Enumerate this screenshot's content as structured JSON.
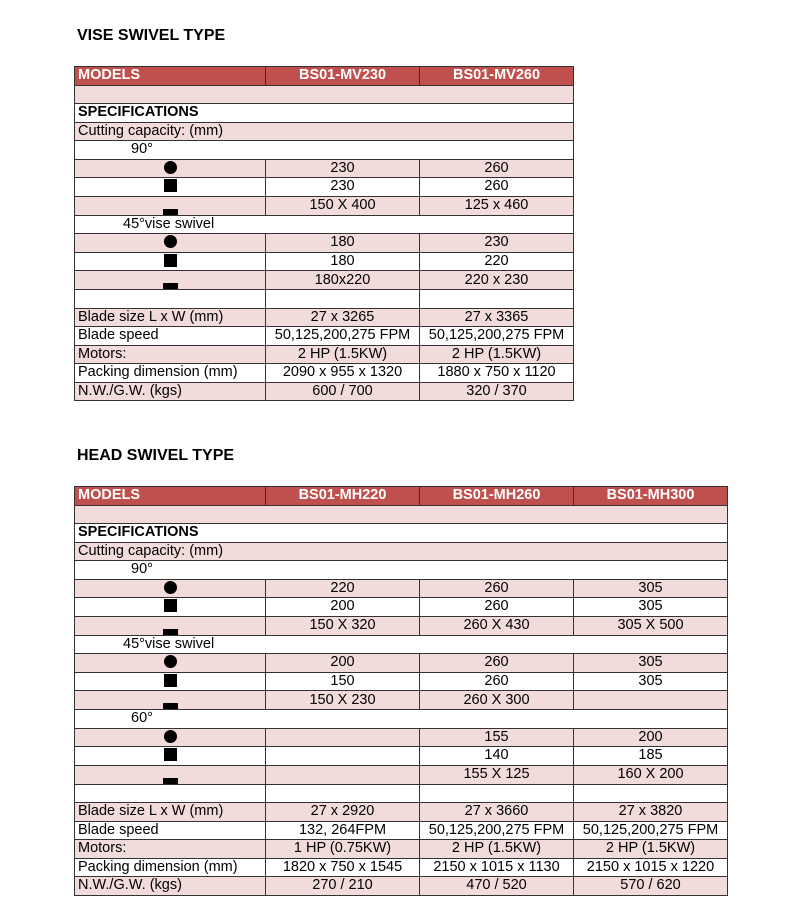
{
  "colors": {
    "header": "#c0504d",
    "shade": "#f2dcdb"
  },
  "tables": [
    {
      "title": "VISE SWIVEL TYPE",
      "models_label": "MODELS",
      "models": [
        "BS01-MV230",
        "BS01-MV260"
      ],
      "rows": [
        {
          "kind": "span",
          "label": "",
          "shade": true
        },
        {
          "kind": "span",
          "label": "SPECIFICATIONS",
          "bold": true,
          "shade": false
        },
        {
          "kind": "span",
          "label": "Cutting capacity: (mm)",
          "shade": true
        },
        {
          "kind": "span",
          "label": "90°",
          "indent": true,
          "shade": false
        },
        {
          "kind": "shape",
          "shape": "circle",
          "values": [
            "230",
            "260"
          ],
          "shade": true
        },
        {
          "kind": "shape",
          "shape": "square",
          "values": [
            "230",
            "260"
          ],
          "shade": false
        },
        {
          "kind": "shape",
          "shape": "rect",
          "values": [
            "150 X 400",
            "125 x 460"
          ],
          "shade": true
        },
        {
          "kind": "span",
          "label": "45°vise swivel",
          "indent2": true,
          "shade": false
        },
        {
          "kind": "shape",
          "shape": "circle",
          "values": [
            "180",
            "230"
          ],
          "shade": true
        },
        {
          "kind": "shape",
          "shape": "square",
          "values": [
            "180",
            "220"
          ],
          "shade": false
        },
        {
          "kind": "shape",
          "shape": "rect",
          "values": [
            "180x220",
            "220 x 230"
          ],
          "shade": true
        },
        {
          "kind": "row",
          "label": "",
          "values": [
            "",
            ""
          ],
          "shade": false
        },
        {
          "kind": "row",
          "label": "Blade size L x W (mm)",
          "values": [
            "27 x 3265",
            "27 x 3365"
          ],
          "shade": true
        },
        {
          "kind": "row",
          "label": "Blade speed",
          "values": [
            "50,125,200,275 FPM",
            "50,125,200,275 FPM"
          ],
          "shade": false
        },
        {
          "kind": "row",
          "label": "Motors:",
          "values": [
            "2 HP (1.5KW)",
            "2 HP (1.5KW)"
          ],
          "shade": true
        },
        {
          "kind": "row",
          "label": "Packing dimension (mm)",
          "values": [
            "2090 x 955 x 1320",
            "1880 x 750 x 1120"
          ],
          "shade": false
        },
        {
          "kind": "row",
          "label": "N.W./G.W. (kgs)",
          "values": [
            "600 / 700",
            "320 / 370"
          ],
          "shade": true
        }
      ]
    },
    {
      "title": "HEAD SWIVEL TYPE",
      "models_label": "MODELS",
      "models": [
        "BS01-MH220",
        "BS01-MH260",
        "BS01-MH300"
      ],
      "rows": [
        {
          "kind": "span",
          "label": "",
          "shade": true
        },
        {
          "kind": "span",
          "label": "SPECIFICATIONS",
          "bold": true,
          "shade": false
        },
        {
          "kind": "span",
          "label": "Cutting capacity: (mm)",
          "shade": true
        },
        {
          "kind": "span",
          "label": "90°",
          "indent": true,
          "shade": false
        },
        {
          "kind": "shape",
          "shape": "circle",
          "values": [
            "220",
            "260",
            "305"
          ],
          "shade": true
        },
        {
          "kind": "shape",
          "shape": "square",
          "values": [
            "200",
            "260",
            "305"
          ],
          "shade": false
        },
        {
          "kind": "shape",
          "shape": "rect",
          "values": [
            "150 X 320",
            "260 X 430",
            "305 X 500"
          ],
          "shade": true
        },
        {
          "kind": "span",
          "label": "45°vise swivel",
          "indent2": true,
          "shade": false
        },
        {
          "kind": "shape",
          "shape": "circle",
          "values": [
            "200",
            "260",
            "305"
          ],
          "shade": true
        },
        {
          "kind": "shape",
          "shape": "square",
          "values": [
            "150",
            "260",
            "305"
          ],
          "shade": false
        },
        {
          "kind": "shape",
          "shape": "rect",
          "values": [
            "150 X 230",
            "260 X 300",
            ""
          ],
          "shade": true
        },
        {
          "kind": "span",
          "label": "60°",
          "indent": true,
          "shade": false
        },
        {
          "kind": "shape",
          "shape": "circle",
          "values": [
            "",
            "155",
            "200"
          ],
          "shade": true
        },
        {
          "kind": "shape",
          "shape": "square",
          "values": [
            "",
            "140",
            "185"
          ],
          "shade": false
        },
        {
          "kind": "shape",
          "shape": "rect",
          "values": [
            "",
            "155 X 125",
            "160 X 200"
          ],
          "shade": true
        },
        {
          "kind": "row",
          "label": "",
          "values": [
            "",
            "",
            ""
          ],
          "shade": false
        },
        {
          "kind": "row",
          "label": "Blade size L x W (mm)",
          "values": [
            "27 x 2920",
            "27 x 3660",
            "27 x 3820"
          ],
          "shade": true
        },
        {
          "kind": "row",
          "label": "Blade speed",
          "values": [
            "132, 264FPM",
            "50,125,200,275 FPM",
            "50,125,200,275 FPM"
          ],
          "shade": false
        },
        {
          "kind": "row",
          "label": "Motors:",
          "values": [
            "1 HP (0.75KW)",
            "2 HP (1.5KW)",
            "2 HP (1.5KW)"
          ],
          "shade": true
        },
        {
          "kind": "row",
          "label": "Packing dimension (mm)",
          "values": [
            "1820 x 750 x 1545",
            "2150 x 1015 x 1130",
            "2150 x 1015 x 1220"
          ],
          "shade": false
        },
        {
          "kind": "row",
          "label": "N.W./G.W. (kgs)",
          "values": [
            "270 / 210",
            "470 / 520",
            "570 / 620"
          ],
          "shade": true
        }
      ]
    }
  ]
}
